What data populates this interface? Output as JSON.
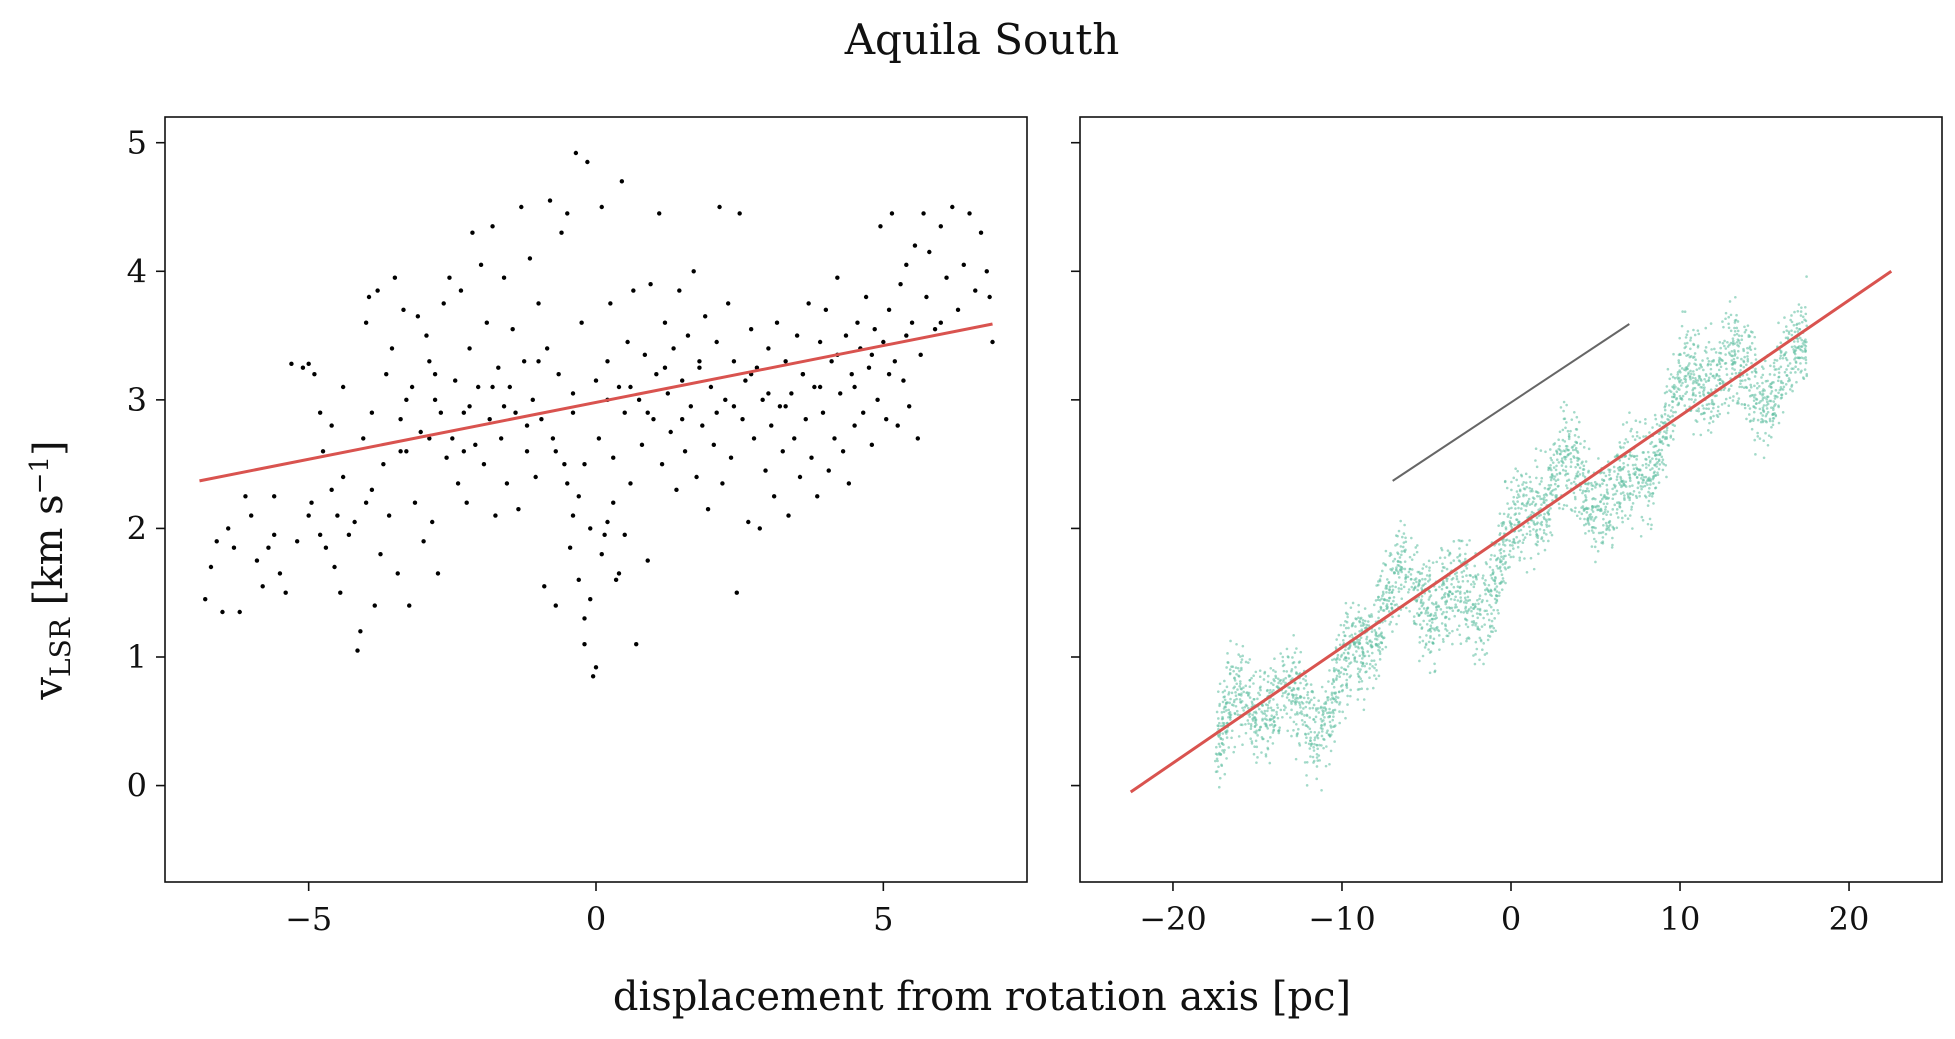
{
  "figure": {
    "title": "Aquila South",
    "xlabel": "displacement from rotation axis [pc]",
    "ylabel_main": "v",
    "ylabel_sub": "LSR",
    "ylabel_unit": " [km s",
    "ylabel_exp": "−1",
    "ylabel_close": "]"
  },
  "chart_data": [
    {
      "type": "scatter",
      "panel": "left",
      "xlim": [
        -7.5,
        7.5
      ],
      "ylim": [
        -0.75,
        5.2
      ],
      "xticks": [
        -5,
        0,
        5
      ],
      "xtick_labels": [
        "−5",
        "0",
        "5"
      ],
      "yticks": [
        0,
        1,
        2,
        3,
        4,
        5
      ],
      "ytick_labels": [
        "0",
        "1",
        "2",
        "3",
        "4",
        "5"
      ],
      "grid": false,
      "point_color": "#000000",
      "fit_color": "#d9534f",
      "fit_line": {
        "x": [
          -6.9,
          6.9
        ],
        "y": [
          2.37,
          3.59
        ]
      },
      "points": [
        [
          -6.8,
          1.45
        ],
        [
          -6.7,
          1.7
        ],
        [
          -6.6,
          1.9
        ],
        [
          -6.5,
          1.35
        ],
        [
          -6.4,
          2.0
        ],
        [
          -6.3,
          1.85
        ],
        [
          -6.2,
          1.35
        ],
        [
          -6.1,
          2.25
        ],
        [
          -6.0,
          2.1
        ],
        [
          -5.9,
          1.75
        ],
        [
          -5.8,
          1.55
        ],
        [
          -5.7,
          1.85
        ],
        [
          -5.6,
          1.95
        ],
        [
          -5.5,
          1.65
        ],
        [
          -5.4,
          1.5
        ],
        [
          -5.3,
          3.28
        ],
        [
          -5.2,
          1.9
        ],
        [
          -5.1,
          3.25
        ],
        [
          -5.0,
          3.28
        ],
        [
          -4.95,
          2.2
        ],
        [
          -4.9,
          3.2
        ],
        [
          -4.8,
          1.95
        ],
        [
          -4.75,
          2.6
        ],
        [
          -4.7,
          1.85
        ],
        [
          -4.6,
          2.8
        ],
        [
          -4.55,
          1.7
        ],
        [
          -4.5,
          2.1
        ],
        [
          -4.45,
          1.5
        ],
        [
          -4.4,
          2.4
        ],
        [
          -4.3,
          1.95
        ],
        [
          -4.2,
          2.05
        ],
        [
          -4.15,
          1.05
        ],
        [
          -4.1,
          1.2
        ],
        [
          -4.05,
          2.7
        ],
        [
          -4.0,
          3.6
        ],
        [
          -3.95,
          3.8
        ],
        [
          -3.9,
          2.3
        ],
        [
          -3.85,
          1.4
        ],
        [
          -3.8,
          3.85
        ],
        [
          -3.75,
          1.8
        ],
        [
          -3.7,
          2.5
        ],
        [
          -3.65,
          3.2
        ],
        [
          -3.6,
          2.1
        ],
        [
          -3.55,
          3.4
        ],
        [
          -3.5,
          3.95
        ],
        [
          -3.45,
          1.65
        ],
        [
          -3.4,
          2.85
        ],
        [
          -3.35,
          3.7
        ],
        [
          -3.3,
          2.6
        ],
        [
          -3.25,
          1.4
        ],
        [
          -3.2,
          3.1
        ],
        [
          -3.15,
          2.2
        ],
        [
          -3.1,
          3.65
        ],
        [
          -3.05,
          2.75
        ],
        [
          -3.0,
          1.9
        ],
        [
          -2.95,
          3.5
        ],
        [
          -2.9,
          3.3
        ],
        [
          -2.85,
          2.05
        ],
        [
          -2.8,
          3.0
        ],
        [
          -2.75,
          1.65
        ],
        [
          -2.7,
          2.9
        ],
        [
          -2.65,
          3.75
        ],
        [
          -2.6,
          2.55
        ],
        [
          -2.55,
          3.95
        ],
        [
          -2.5,
          2.7
        ],
        [
          -2.45,
          3.15
        ],
        [
          -2.4,
          2.35
        ],
        [
          -2.35,
          3.85
        ],
        [
          -2.3,
          2.9
        ],
        [
          -2.25,
          2.2
        ],
        [
          -2.2,
          3.4
        ],
        [
          -2.15,
          4.3
        ],
        [
          -2.1,
          2.65
        ],
        [
          -2.05,
          3.1
        ],
        [
          -2.0,
          4.05
        ],
        [
          -1.95,
          2.5
        ],
        [
          -1.9,
          3.6
        ],
        [
          -1.85,
          2.85
        ],
        [
          -1.8,
          4.35
        ],
        [
          -1.75,
          2.1
        ],
        [
          -1.7,
          3.25
        ],
        [
          -1.65,
          2.7
        ],
        [
          -1.6,
          3.95
        ],
        [
          -1.55,
          2.35
        ],
        [
          -1.5,
          3.1
        ],
        [
          -1.45,
          3.55
        ],
        [
          -1.4,
          2.9
        ],
        [
          -1.35,
          2.15
        ],
        [
          -1.3,
          4.5
        ],
        [
          -1.25,
          3.3
        ],
        [
          -1.2,
          2.6
        ],
        [
          -1.15,
          4.1
        ],
        [
          -1.1,
          3.0
        ],
        [
          -1.05,
          2.4
        ],
        [
          -1.0,
          3.75
        ],
        [
          -0.95,
          2.85
        ],
        [
          -0.9,
          1.55
        ],
        [
          -0.85,
          3.4
        ],
        [
          -0.8,
          4.55
        ],
        [
          -0.75,
          2.7
        ],
        [
          -0.7,
          1.4
        ],
        [
          -0.65,
          3.2
        ],
        [
          -0.6,
          4.3
        ],
        [
          -0.55,
          2.5
        ],
        [
          -0.5,
          4.45
        ],
        [
          -0.45,
          1.85
        ],
        [
          -0.4,
          3.05
        ],
        [
          -0.35,
          4.92
        ],
        [
          -0.3,
          2.25
        ],
        [
          -0.25,
          3.6
        ],
        [
          -0.2,
          1.3
        ],
        [
          -0.15,
          4.85
        ],
        [
          -0.1,
          2.0
        ],
        [
          -0.05,
          0.85
        ],
        [
          0.0,
          3.15
        ],
        [
          0.05,
          2.7
        ],
        [
          0.1,
          4.5
        ],
        [
          0.15,
          1.95
        ],
        [
          0.2,
          3.3
        ],
        [
          0.25,
          3.75
        ],
        [
          0.3,
          2.55
        ],
        [
          0.35,
          1.6
        ],
        [
          0.4,
          3.1
        ],
        [
          0.45,
          4.7
        ],
        [
          0.5,
          2.9
        ],
        [
          0.55,
          3.45
        ],
        [
          0.6,
          2.35
        ],
        [
          0.65,
          3.85
        ],
        [
          0.7,
          1.1
        ],
        [
          0.75,
          3.0
        ],
        [
          0.8,
          2.65
        ],
        [
          0.85,
          3.35
        ],
        [
          0.9,
          1.75
        ],
        [
          0.95,
          3.9
        ],
        [
          1.0,
          2.85
        ],
        [
          1.05,
          3.2
        ],
        [
          1.1,
          4.45
        ],
        [
          1.15,
          2.5
        ],
        [
          1.2,
          3.6
        ],
        [
          1.25,
          3.05
        ],
        [
          1.3,
          2.75
        ],
        [
          1.35,
          3.4
        ],
        [
          1.4,
          2.3
        ],
        [
          1.45,
          3.85
        ],
        [
          1.5,
          3.15
        ],
        [
          1.55,
          2.6
        ],
        [
          1.6,
          3.5
        ],
        [
          1.65,
          2.95
        ],
        [
          1.7,
          4.0
        ],
        [
          1.75,
          2.4
        ],
        [
          1.8,
          3.25
        ],
        [
          1.85,
          2.8
        ],
        [
          1.9,
          3.65
        ],
        [
          1.95,
          2.15
        ],
        [
          2.0,
          3.1
        ],
        [
          2.05,
          2.65
        ],
        [
          2.1,
          3.45
        ],
        [
          2.15,
          4.5
        ],
        [
          2.2,
          2.35
        ],
        [
          2.25,
          3.0
        ],
        [
          2.3,
          3.75
        ],
        [
          2.35,
          2.55
        ],
        [
          2.4,
          3.3
        ],
        [
          2.45,
          1.5
        ],
        [
          2.5,
          4.45
        ],
        [
          2.55,
          2.85
        ],
        [
          2.6,
          3.15
        ],
        [
          2.65,
          2.05
        ],
        [
          2.7,
          3.55
        ],
        [
          2.75,
          2.7
        ],
        [
          2.8,
          3.25
        ],
        [
          2.85,
          2.0
        ],
        [
          2.9,
          3.0
        ],
        [
          2.95,
          2.45
        ],
        [
          3.0,
          3.4
        ],
        [
          3.05,
          2.8
        ],
        [
          3.1,
          2.25
        ],
        [
          3.15,
          3.6
        ],
        [
          3.2,
          2.95
        ],
        [
          3.25,
          2.6
        ],
        [
          3.3,
          3.3
        ],
        [
          3.35,
          2.1
        ],
        [
          3.4,
          3.05
        ],
        [
          3.45,
          2.7
        ],
        [
          3.5,
          3.5
        ],
        [
          3.55,
          2.4
        ],
        [
          3.6,
          3.2
        ],
        [
          3.65,
          2.85
        ],
        [
          3.7,
          3.75
        ],
        [
          3.75,
          2.55
        ],
        [
          3.8,
          3.1
        ],
        [
          3.85,
          2.25
        ],
        [
          3.9,
          3.45
        ],
        [
          3.95,
          2.9
        ],
        [
          4.0,
          3.7
        ],
        [
          4.05,
          2.45
        ],
        [
          4.1,
          3.3
        ],
        [
          4.15,
          2.7
        ],
        [
          4.2,
          3.95
        ],
        [
          4.25,
          3.05
        ],
        [
          4.3,
          2.6
        ],
        [
          4.35,
          3.5
        ],
        [
          4.4,
          2.35
        ],
        [
          4.45,
          3.2
        ],
        [
          4.5,
          2.8
        ],
        [
          4.55,
          3.6
        ],
        [
          4.6,
          3.4
        ],
        [
          4.65,
          2.9
        ],
        [
          4.7,
          3.8
        ],
        [
          4.75,
          3.25
        ],
        [
          4.8,
          2.65
        ],
        [
          4.85,
          3.55
        ],
        [
          4.9,
          3.0
        ],
        [
          4.95,
          4.35
        ],
        [
          5.0,
          3.45
        ],
        [
          5.05,
          2.85
        ],
        [
          5.1,
          3.7
        ],
        [
          5.15,
          4.45
        ],
        [
          5.2,
          3.3
        ],
        [
          5.25,
          2.8
        ],
        [
          5.3,
          3.9
        ],
        [
          5.35,
          3.15
        ],
        [
          5.4,
          4.05
        ],
        [
          5.45,
          2.95
        ],
        [
          5.5,
          3.6
        ],
        [
          5.55,
          4.2
        ],
        [
          5.6,
          2.7
        ],
        [
          5.65,
          3.35
        ],
        [
          5.7,
          4.45
        ],
        [
          5.75,
          3.8
        ],
        [
          5.8,
          4.15
        ],
        [
          5.9,
          3.55
        ],
        [
          6.0,
          4.35
        ],
        [
          6.1,
          3.95
        ],
        [
          6.2,
          4.5
        ],
        [
          6.3,
          3.7
        ],
        [
          6.4,
          4.05
        ],
        [
          6.5,
          4.45
        ],
        [
          6.6,
          3.85
        ],
        [
          6.7,
          4.3
        ],
        [
          6.8,
          4.0
        ],
        [
          6.85,
          3.8
        ],
        [
          6.9,
          3.45
        ],
        [
          -4.8,
          2.9
        ],
        [
          -4.4,
          3.1
        ],
        [
          -3.9,
          2.9
        ],
        [
          -3.3,
          3.0
        ],
        [
          -2.8,
          3.2
        ],
        [
          -2.2,
          2.95
        ],
        [
          -1.6,
          2.95
        ],
        [
          -1.0,
          3.3
        ],
        [
          -0.4,
          2.9
        ],
        [
          0.2,
          3.0
        ],
        [
          0.6,
          3.1
        ],
        [
          1.2,
          3.25
        ],
        [
          1.8,
          3.3
        ],
        [
          2.4,
          2.95
        ],
        [
          3.0,
          3.05
        ],
        [
          3.6,
          3.2
        ],
        [
          4.2,
          3.35
        ],
        [
          4.8,
          3.35
        ],
        [
          5.4,
          3.5
        ],
        [
          6.0,
          3.6
        ],
        [
          -5.6,
          2.25
        ],
        [
          -5.0,
          2.1
        ],
        [
          -4.6,
          2.3
        ],
        [
          -4.0,
          2.2
        ],
        [
          -3.4,
          2.6
        ],
        [
          -2.9,
          2.7
        ],
        [
          -2.3,
          2.6
        ],
        [
          -1.8,
          3.1
        ],
        [
          -1.2,
          2.8
        ],
        [
          -0.7,
          2.6
        ],
        [
          -0.2,
          2.5
        ],
        [
          0.3,
          2.2
        ],
        [
          0.9,
          2.9
        ],
        [
          1.5,
          2.85
        ],
        [
          2.1,
          2.9
        ],
        [
          2.7,
          3.2
        ],
        [
          3.3,
          2.95
        ],
        [
          3.9,
          3.1
        ],
        [
          4.5,
          3.1
        ],
        [
          5.1,
          3.2
        ],
        [
          -0.3,
          1.6
        ],
        [
          -0.1,
          1.45
        ],
        [
          0.1,
          1.8
        ],
        [
          0.4,
          1.65
        ],
        [
          -0.2,
          1.1
        ],
        [
          0.0,
          0.92
        ],
        [
          0.2,
          2.05
        ],
        [
          -0.4,
          2.1
        ],
        [
          0.5,
          1.95
        ],
        [
          -0.5,
          2.35
        ]
      ]
    },
    {
      "type": "scatter",
      "panel": "right",
      "xlim": [
        -25.5,
        25.5
      ],
      "ylim": [
        -0.75,
        5.2
      ],
      "xticks": [
        -20,
        -10,
        0,
        10,
        20
      ],
      "xtick_labels": [
        "−20",
        "−10",
        "0",
        "10",
        "20"
      ],
      "yticks": [
        0,
        1,
        2,
        3,
        4,
        5
      ],
      "ytick_labels": [
        "",
        "",
        "",
        "",
        "",
        ""
      ],
      "grid": false,
      "point_color": "#66c2a5",
      "fit_color": "#d9534f",
      "fit_line": {
        "x": [
          -22.5,
          22.5
        ],
        "y": [
          -0.05,
          4.0
        ]
      },
      "reference_line": {
        "x": [
          -7.0,
          7.0
        ],
        "y": [
          2.37,
          3.59
        ],
        "color": "#666666"
      },
      "cloud": {
        "x_range": [
          -17.5,
          17.5
        ],
        "center_slope": 0.095,
        "center_intercept": 1.9,
        "spread": 0.55,
        "n_points": 3200
      }
    }
  ]
}
